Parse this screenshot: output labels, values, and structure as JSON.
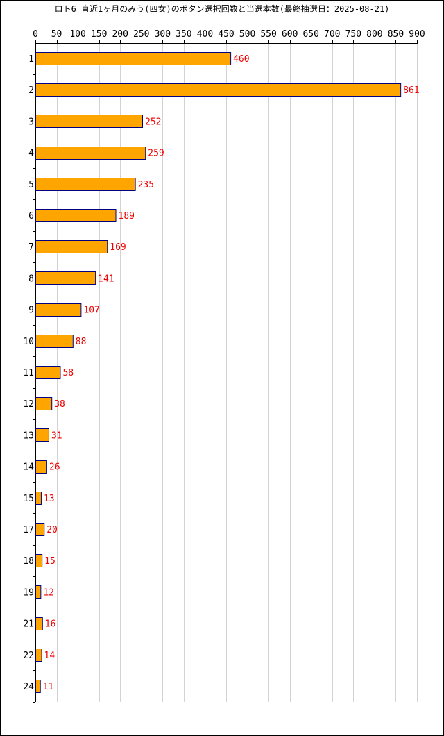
{
  "chart_data": {
    "type": "bar",
    "orientation": "horizontal",
    "title": "ロト6 直近1ヶ月のみう(四女)のボタン選択回数と当選本数(最終抽選日：2025-08-21)",
    "categories": [
      "1",
      "2",
      "3",
      "4",
      "5",
      "6",
      "7",
      "8",
      "9",
      "10",
      "11",
      "12",
      "13",
      "14",
      "15",
      "17",
      "18",
      "19",
      "21",
      "22",
      "24"
    ],
    "values": [
      460,
      861,
      252,
      259,
      235,
      189,
      169,
      141,
      107,
      88,
      58,
      38,
      31,
      26,
      13,
      20,
      15,
      12,
      16,
      14,
      11
    ],
    "x_ticks": [
      0,
      50,
      100,
      150,
      200,
      250,
      300,
      350,
      400,
      450,
      500,
      550,
      600,
      650,
      700,
      750,
      800,
      850,
      900
    ],
    "xlim": [
      0,
      900
    ],
    "xlabel": "",
    "ylabel": "",
    "grid": "vertical",
    "legend": "none",
    "colors": {
      "bar_fill": "#ffa500",
      "bar_stroke": "#000080",
      "value_label": "#ee0000",
      "grid": "#d3d3d3",
      "axis": "#000000"
    }
  }
}
